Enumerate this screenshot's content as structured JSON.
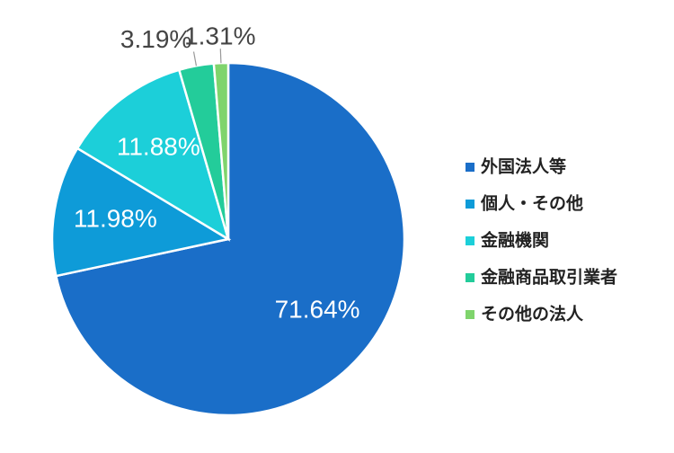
{
  "chart_data": {
    "type": "pie",
    "categories": [
      "外国法人等",
      "個人・その他",
      "金融機関",
      "金融商品取引業者",
      "その他の法人"
    ],
    "values": [
      71.64,
      11.98,
      11.88,
      3.19,
      1.31
    ],
    "value_labels": [
      "71.64%",
      "11.98%",
      "11.88%",
      "3.19%",
      "1.31%"
    ],
    "colors": [
      "#1a6ec8",
      "#0e9bd8",
      "#1ccfd9",
      "#23cc9a",
      "#7fd46c"
    ],
    "legend": "right"
  }
}
